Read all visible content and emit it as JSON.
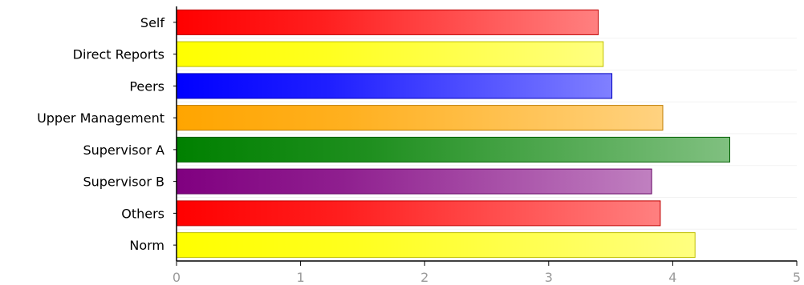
{
  "chart_data": {
    "type": "bar",
    "orientation": "horizontal",
    "categories": [
      "Self",
      "Direct Reports",
      "Peers",
      "Upper Management",
      "Supervisor A",
      "Supervisor B",
      "Others",
      "Norm"
    ],
    "values": [
      3.4,
      3.44,
      3.51,
      3.92,
      4.46,
      3.83,
      3.9,
      4.18
    ],
    "colors": [
      "#ff0000",
      "#ffff00",
      "#0000ff",
      "#ffa500",
      "#008000",
      "#800080",
      "#ff0000",
      "#ffff00"
    ],
    "x_ticks": [
      "0",
      "1",
      "2",
      "3",
      "4",
      "5"
    ],
    "xlim": [
      0,
      5
    ],
    "title": "",
    "xlabel": "",
    "ylabel": "",
    "grid": true,
    "legend": "none"
  }
}
